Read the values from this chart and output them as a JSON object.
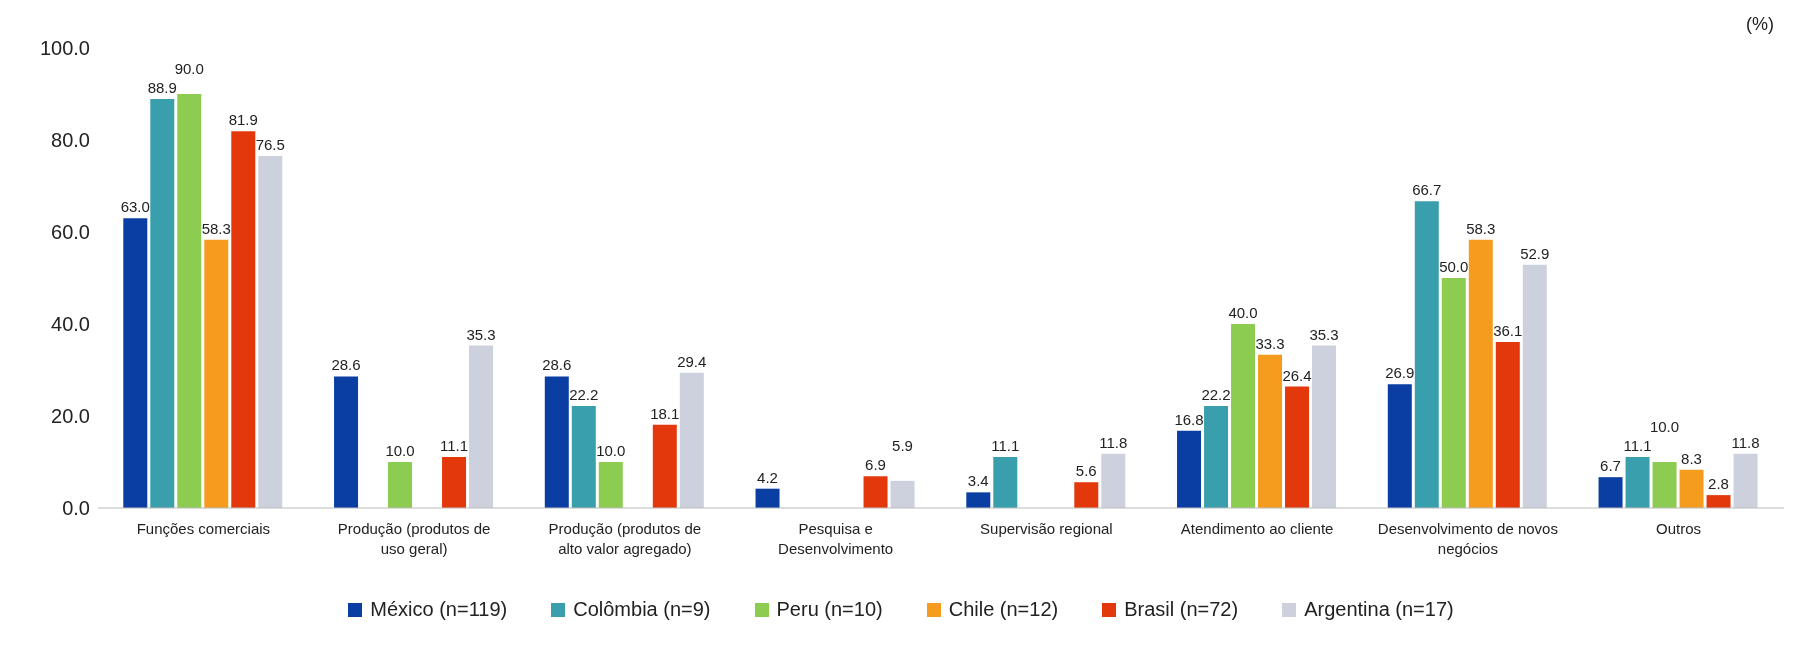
{
  "chart_data": {
    "type": "bar",
    "ylabel": "(%)",
    "categories": [
      "Funções comerciais",
      "Produção (produtos de uso geral)",
      "Produção (produtos de alto valor agregado)",
      "Pesquisa e Desenvolvimento",
      "Supervisão regional",
      "Atendimento ao cliente",
      "Desenvolvimento de novos negócios",
      "Outros"
    ],
    "series": [
      {
        "name": "México (n=119)",
        "color": "#0a3ea3",
        "values": [
          63.0,
          28.6,
          28.6,
          4.2,
          3.4,
          16.8,
          26.9,
          6.7
        ],
        "value_labels": [
          "63.0",
          "28.6",
          "28.6",
          "4.2",
          "3.4",
          "16.8",
          "26.9",
          "6.7"
        ]
      },
      {
        "name": "Colômbia (n=9)",
        "color": "#3a9fad",
        "values": [
          88.9,
          null,
          22.2,
          null,
          11.1,
          22.2,
          66.7,
          11.1
        ],
        "value_labels": [
          "88.9",
          null,
          "22.2",
          null,
          "11.1",
          "22.2",
          "66.7",
          "11.1"
        ]
      },
      {
        "name": "Peru (n=10)",
        "color": "#8ccc50",
        "values": [
          90.0,
          10.0,
          10.0,
          null,
          null,
          40.0,
          50.0,
          10.0
        ],
        "value_labels": [
          "90.0",
          "10.0",
          "10.0",
          null,
          null,
          "40.0",
          "50.0",
          "10.0"
        ]
      },
      {
        "name": "Chile (n=12)",
        "color": "#f59b1e",
        "values": [
          58.3,
          null,
          null,
          null,
          null,
          33.3,
          58.3,
          8.3
        ],
        "value_labels": [
          "58.3",
          null,
          null,
          null,
          null,
          "33.3",
          "58.3",
          "8.3"
        ]
      },
      {
        "name": "Brasil (n=72)",
        "color": "#e2380c",
        "values": [
          81.9,
          11.1,
          18.1,
          6.9,
          5.6,
          26.4,
          36.1,
          2.8
        ],
        "value_labels": [
          "81.9",
          "11.1",
          "18.1",
          "6.9",
          "5.6",
          "26.4",
          "36.1",
          "2.8"
        ]
      },
      {
        "name": "Argentina (n=17)",
        "color": "#cdd1dd",
        "values": [
          76.5,
          35.3,
          29.4,
          5.9,
          11.8,
          35.3,
          52.9,
          11.8
        ],
        "value_labels": [
          "76.5",
          "35.3",
          "29.4",
          "5.9",
          "11.8",
          "35.3",
          "52.9",
          "11.8"
        ]
      }
    ],
    "ylim": [
      0,
      100
    ],
    "yticks": [
      {
        "value": 0,
        "label": "0.0"
      },
      {
        "value": 20,
        "label": "20.0"
      },
      {
        "value": 40,
        "label": "40.0"
      },
      {
        "value": 60,
        "label": "60.0"
      },
      {
        "value": 80,
        "label": "80.0"
      },
      {
        "value": 100,
        "label": "100.0"
      }
    ],
    "grid": false,
    "legend": "bottom"
  }
}
